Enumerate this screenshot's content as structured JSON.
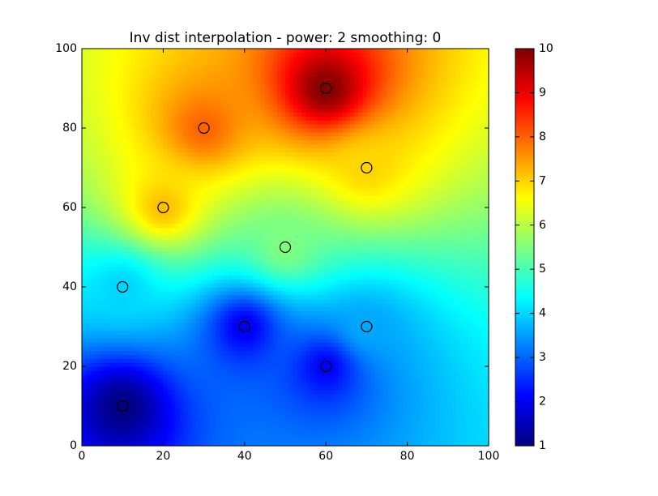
{
  "chart_data": {
    "type": "idw",
    "title": "Inv dist interpolation - power: 2 smoothing: 0",
    "x": [
      10,
      60,
      30,
      70,
      20,
      50,
      10,
      40,
      70,
      60
    ],
    "y": [
      10,
      90,
      80,
      70,
      60,
      50,
      40,
      30,
      30,
      20
    ],
    "z": [
      1,
      10,
      8,
      7,
      7.2,
      5.5,
      4,
      2,
      3.6,
      2.1
    ],
    "power": 2,
    "colormap": "jet",
    "marker_color": "#000000",
    "xlim": [
      0,
      100
    ],
    "ylim": [
      0,
      100
    ],
    "xticks": [
      0,
      20,
      40,
      60,
      80,
      100
    ],
    "yticks": [
      0,
      20,
      40,
      60,
      80,
      100
    ],
    "clim": [
      1,
      10
    ],
    "cticks": [
      1,
      2,
      3,
      4,
      5,
      6,
      7,
      8,
      9,
      10
    ]
  }
}
